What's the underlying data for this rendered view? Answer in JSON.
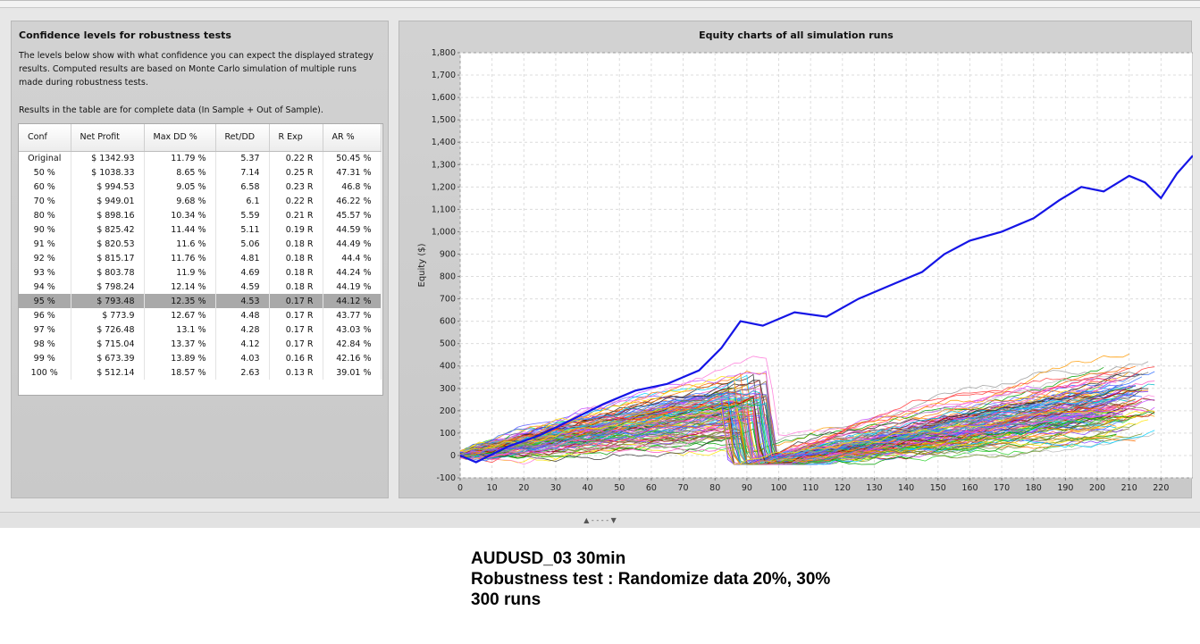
{
  "left_panel": {
    "title": "Confidence levels for robustness tests",
    "description": "The levels below show with what confidence you can expect the displayed strategy results. Computed results are based on Monte Carlo simulation of multiple runs made during robustness tests.",
    "note": "Results in the table are for complete data (In Sample + Out of Sample).",
    "columns": [
      "Conf",
      "Net Profit",
      "Max DD %",
      "Ret/DD",
      "R Exp",
      "AR %"
    ],
    "rows": [
      [
        "Original",
        "$ 1342.93",
        "11.79 %",
        "5.37",
        "0.22 R",
        "50.45 %"
      ],
      [
        "50 %",
        "$ 1038.33",
        "8.65 %",
        "7.14",
        "0.25 R",
        "47.31 %"
      ],
      [
        "60 %",
        "$ 994.53",
        "9.05 %",
        "6.58",
        "0.23 R",
        "46.8 %"
      ],
      [
        "70 %",
        "$ 949.01",
        "9.68 %",
        "6.1",
        "0.22 R",
        "46.22 %"
      ],
      [
        "80 %",
        "$ 898.16",
        "10.34 %",
        "5.59",
        "0.21 R",
        "45.57 %"
      ],
      [
        "90 %",
        "$ 825.42",
        "11.44 %",
        "5.11",
        "0.19 R",
        "44.59 %"
      ],
      [
        "91 %",
        "$ 820.53",
        "11.6 %",
        "5.06",
        "0.18 R",
        "44.49 %"
      ],
      [
        "92 %",
        "$ 815.17",
        "11.76 %",
        "4.81",
        "0.18 R",
        "44.4 %"
      ],
      [
        "93 %",
        "$ 803.78",
        "11.9 %",
        "4.69",
        "0.18 R",
        "44.24 %"
      ],
      [
        "94 %",
        "$ 798.24",
        "12.14 %",
        "4.59",
        "0.18 R",
        "44.19 %"
      ],
      [
        "95 %",
        "$ 793.48",
        "12.35 %",
        "4.53",
        "0.17 R",
        "44.12 %"
      ],
      [
        "96 %",
        "$ 773.9",
        "12.67 %",
        "4.48",
        "0.17 R",
        "43.77 %"
      ],
      [
        "97 %",
        "$ 726.48",
        "13.1 %",
        "4.28",
        "0.17 R",
        "43.03 %"
      ],
      [
        "98 %",
        "$ 715.04",
        "13.37 %",
        "4.12",
        "0.17 R",
        "42.84 %"
      ],
      [
        "99 %",
        "$ 673.39",
        "13.89 %",
        "4.03",
        "0.16 R",
        "42.16 %"
      ],
      [
        "100 %",
        "$ 512.14",
        "18.57 %",
        "2.63",
        "0.13 R",
        "39.01 %"
      ]
    ],
    "selected_row": "95 %"
  },
  "chart_data": {
    "type": "line",
    "title": "Equity charts of all simulation runs",
    "xlabel": "",
    "ylabel": "Equity ($)",
    "xlim": [
      0,
      230
    ],
    "ylim": [
      -100,
      1800
    ],
    "x_ticks": [
      0,
      10,
      20,
      30,
      40,
      50,
      60,
      70,
      80,
      90,
      100,
      110,
      120,
      130,
      140,
      150,
      160,
      170,
      180,
      190,
      200,
      210,
      220
    ],
    "y_ticks": [
      "-100",
      "0",
      "100",
      "200",
      "300",
      "400",
      "500",
      "600",
      "700",
      "800",
      "900",
      "1,000",
      "1,100",
      "1,200",
      "1,300",
      "1,400",
      "1,500",
      "1,600",
      "1,700",
      "1,800"
    ],
    "grid": true,
    "original_color": "#1515e6",
    "series": [
      {
        "values": [
          [
            0,
            0
          ],
          [
            5,
            -30
          ],
          [
            15,
            40
          ],
          [
            25,
            90
          ],
          [
            35,
            160
          ],
          [
            45,
            230
          ],
          [
            55,
            290
          ],
          [
            65,
            320
          ],
          [
            75,
            380
          ],
          [
            82,
            480
          ],
          [
            88,
            600
          ],
          [
            95,
            580
          ],
          [
            105,
            640
          ],
          [
            115,
            620
          ],
          [
            125,
            700
          ],
          [
            135,
            760
          ],
          [
            145,
            820
          ],
          [
            152,
            900
          ],
          [
            160,
            960
          ],
          [
            170,
            1000
          ],
          [
            180,
            1060
          ],
          [
            188,
            1140
          ],
          [
            195,
            1200
          ],
          [
            202,
            1180
          ],
          [
            210,
            1250
          ],
          [
            215,
            1220
          ],
          [
            220,
            1150
          ],
          [
            225,
            1260
          ],
          [
            230,
            1340
          ]
        ]
      }
    ]
  },
  "splitter": {
    "handle": "▲ - - - - ▼"
  },
  "caption": {
    "line1": "AUDUSD_03 30min",
    "line2": "Robustness test : Randomize data 20%, 30%",
    "line3": "300 runs"
  }
}
